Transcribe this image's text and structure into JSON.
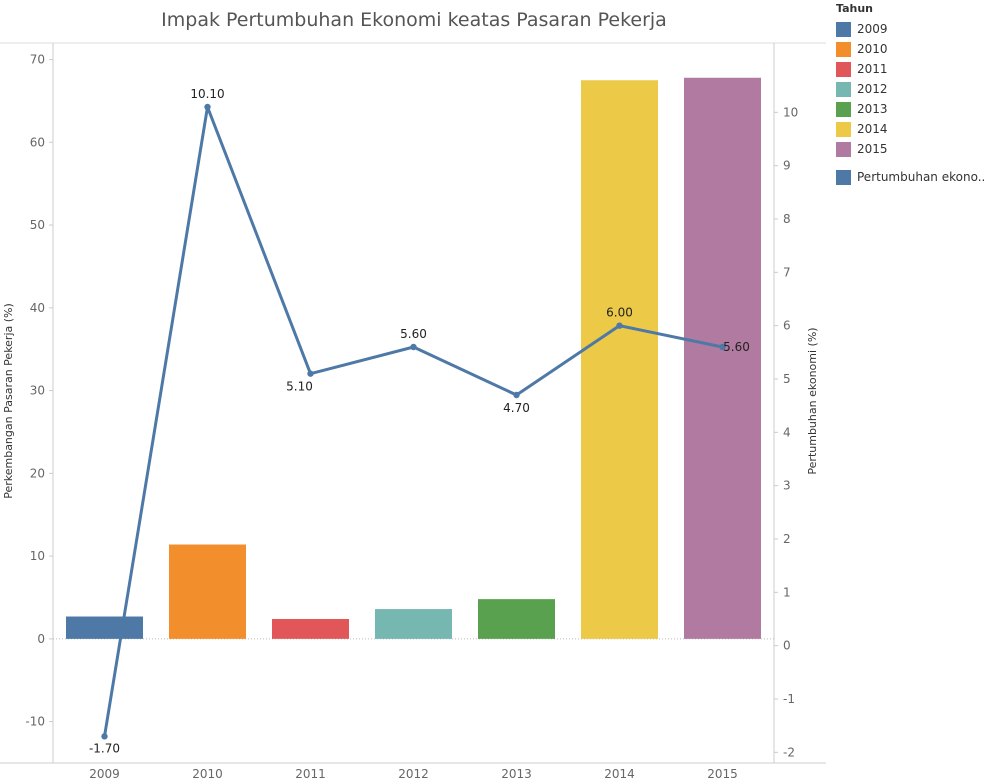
{
  "chart_data": {
    "type": "bar",
    "title": "Impak Pertumbuhan Ekonomi keatas Pasaran Pekerja",
    "categories": [
      "2009",
      "2010",
      "2011",
      "2012",
      "2013",
      "2014",
      "2015"
    ],
    "series": [
      {
        "name": "Perkembangan Pasaran Pekerja (%)",
        "type": "bar",
        "axis": "left",
        "values": [
          2.7,
          11.4,
          2.4,
          3.6,
          4.8,
          67.5,
          67.8
        ]
      },
      {
        "name": "Pertumbuhan ekono..",
        "type": "line",
        "axis": "right",
        "values": [
          -1.7,
          10.1,
          5.1,
          5.6,
          4.7,
          6.0,
          5.6
        ],
        "labels": [
          "-1.70",
          "10.10",
          "5.10",
          "5.60",
          "4.70",
          "6.00",
          "5.60"
        ],
        "color": "#4e79a7"
      }
    ],
    "bar_colors": [
      "#4e79a7",
      "#f28e2b",
      "#e15759",
      "#76b7b2",
      "#59a14f",
      "#edc948",
      "#b07aa1"
    ],
    "ylabel": "Perkembangan Pasaran Pekerja (%)",
    "ylim": [
      -15,
      72
    ],
    "yticks": [
      -10,
      0,
      10,
      20,
      30,
      40,
      50,
      60,
      70
    ],
    "y2label": "Pertumbuhan ekonomi (%)",
    "y2lim": [
      -2.2,
      11.3
    ],
    "y2ticks": [
      -2,
      -1,
      0,
      1,
      2,
      3,
      4,
      5,
      6,
      7,
      8,
      9,
      10
    ],
    "grid": false,
    "legend_position": "right",
    "legend": {
      "title": "Tahun",
      "items": [
        "2009",
        "2010",
        "2011",
        "2012",
        "2013",
        "2014",
        "2015"
      ],
      "line_item": "Pertumbuhan ekono.."
    }
  }
}
